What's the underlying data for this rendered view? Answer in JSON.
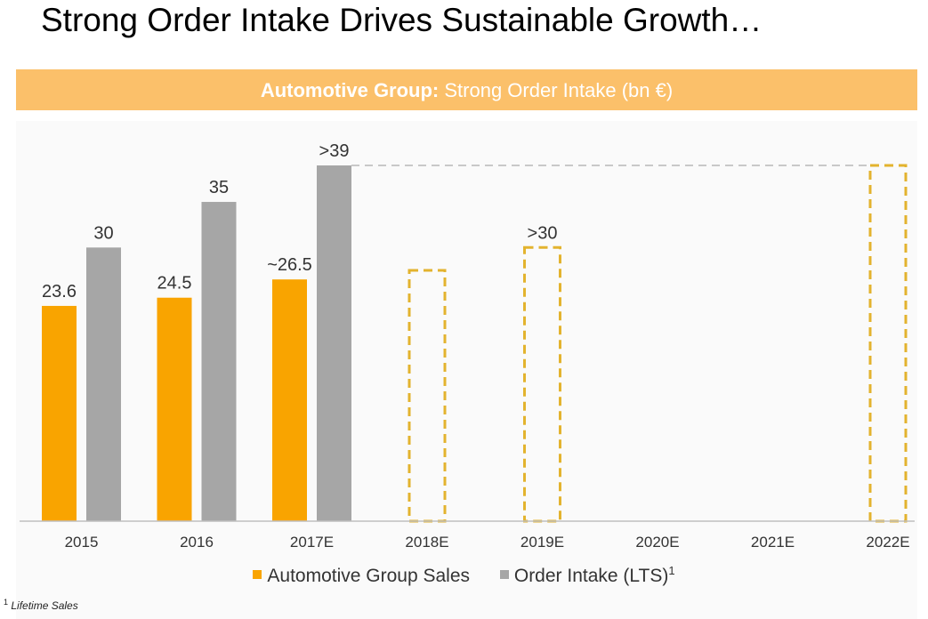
{
  "page_title": "Strong Order Intake Drives Sustainable Growth…",
  "banner": {
    "bold_text": "Automotive Group:",
    "text": " Strong Order Intake (bn €)"
  },
  "colors": {
    "sales": "#f9a400",
    "order_intake": "#a6a6a6",
    "target_outline": "#e3b32e",
    "banner": "#fbc06a"
  },
  "chart_data": {
    "type": "bar",
    "title": "Automotive Group: Strong Order Intake (bn €)",
    "categories": [
      "2015",
      "2016",
      "2017E",
      "2018E",
      "2019E",
      "2020E",
      "2021E",
      "2022E"
    ],
    "ylim": [
      0,
      39
    ],
    "series": [
      {
        "name": "Automotive Group Sales",
        "values": [
          23.6,
          24.5,
          26.5,
          null,
          null,
          null,
          null,
          null
        ],
        "labels": [
          "23.6",
          "24.5",
          "~26.5",
          "",
          "",
          "",
          "",
          ""
        ]
      },
      {
        "name": "Order Intake (LTS)",
        "values": [
          30,
          35,
          39,
          null,
          null,
          null,
          null,
          null
        ],
        "labels": [
          "30",
          "35",
          ">39",
          "",
          "",
          "",
          "",
          ""
        ]
      }
    ],
    "targets": [
      {
        "category": "2018E",
        "value": 27.5,
        "label": ""
      },
      {
        "category": "2019E",
        "value": 30,
        "label": ">30"
      },
      {
        "category": "2022E",
        "value": 39,
        "label": ""
      }
    ],
    "reference_line": {
      "value": 39,
      "from": "2017E",
      "to": "2022E",
      "style": "dashed"
    }
  },
  "legend": {
    "sales_label": "Automotive Group Sales",
    "order_label": "Order Intake (LTS)",
    "order_sup": "1"
  },
  "footnote": {
    "marker": "1",
    "text": "Lifetime Sales"
  }
}
